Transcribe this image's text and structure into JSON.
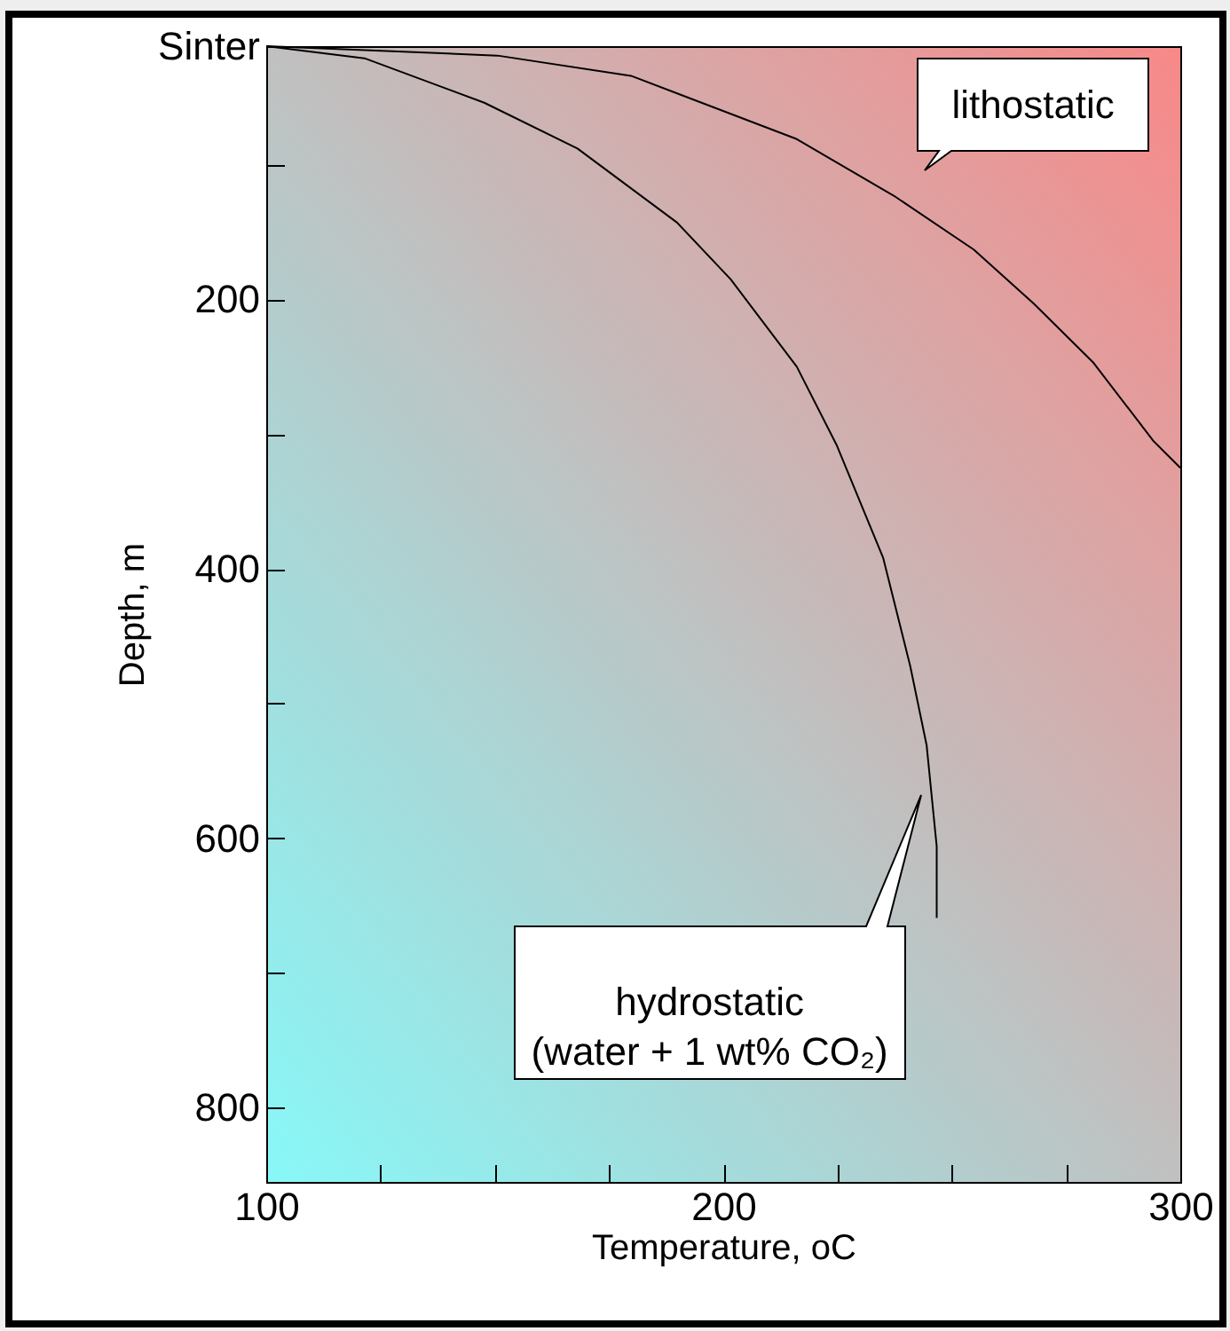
{
  "chart_data": {
    "type": "line",
    "xlabel": "Temperature, oC",
    "ylabel": "Depth, m",
    "xlim": [
      100,
      300
    ],
    "ylim": [
      855,
      12
    ],
    "xticks": [
      100,
      {
        "value": 125,
        "label": null
      },
      {
        "value": 150,
        "label": null
      },
      {
        "value": 175,
        "label": null
      },
      200,
      {
        "value": 225,
        "label": null
      },
      {
        "value": 250,
        "label": null
      },
      {
        "value": 275,
        "label": null
      },
      300
    ],
    "yticks": [
      {
        "value": 12,
        "label": "Sinter"
      },
      {
        "value": 100,
        "label": null
      },
      200,
      {
        "value": 300,
        "label": null
      },
      400,
      {
        "value": 500,
        "label": null
      },
      600,
      {
        "value": 700,
        "label": null
      },
      800
    ],
    "marker": "none",
    "line_style": "solid",
    "series": [
      {
        "name": "lithostatic",
        "color": "#000000",
        "x": [
          100,
          150.6,
          179.8,
          216.1,
          237.3,
          254.8,
          267.9,
          281,
          294.1,
          300
        ],
        "values": [
          12,
          19,
          34,
          81,
          123,
          163,
          203,
          247,
          305,
          325
        ]
      },
      {
        "name": "hydrostatic\n(water + 1 wt% CO₂)",
        "color": "#000000",
        "x": [
          100,
          121.5,
          147.7,
          168.1,
          189.9,
          201.6,
          216.1,
          224.8,
          235,
          240.9,
          244.5,
          246.7,
          246.7
        ],
        "values": [
          12,
          21,
          54,
          88,
          143,
          185,
          250,
          308,
          392,
          472,
          531,
          606,
          659
        ]
      }
    ]
  }
}
